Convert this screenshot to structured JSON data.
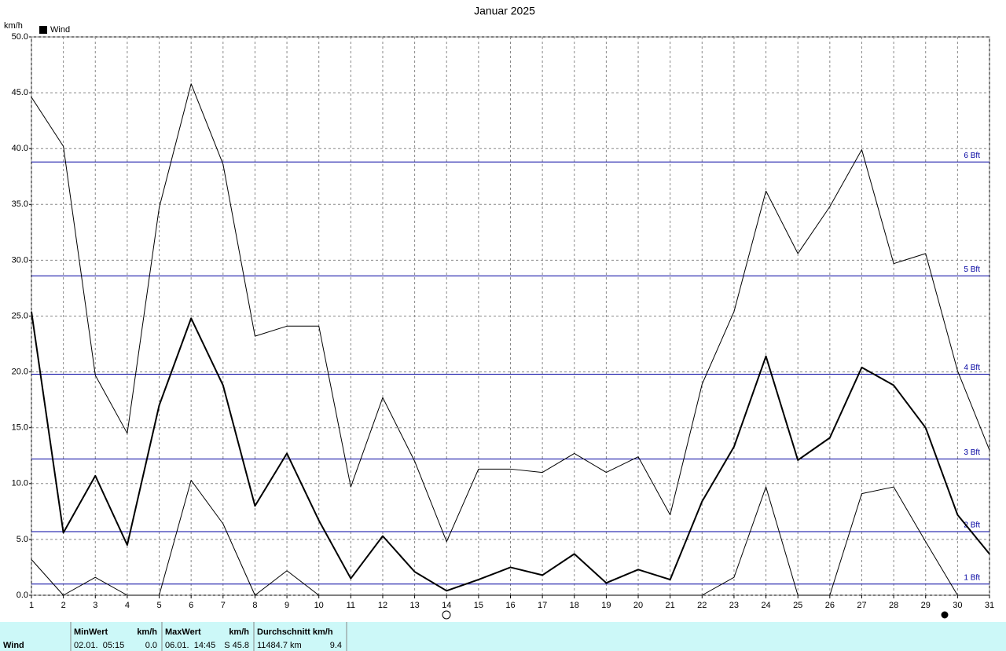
{
  "chart_data": {
    "type": "line",
    "title": "Januar 2025",
    "y_label": "km/h",
    "legend": "top-left",
    "grid": true,
    "x": [
      1,
      2,
      3,
      4,
      5,
      6,
      7,
      8,
      9,
      10,
      11,
      12,
      13,
      14,
      15,
      16,
      17,
      18,
      19,
      20,
      21,
      22,
      23,
      24,
      25,
      26,
      27,
      28,
      29,
      30,
      31
    ],
    "xlim": [
      1,
      31
    ],
    "xticks": [
      1,
      2,
      3,
      4,
      5,
      6,
      7,
      8,
      9,
      10,
      11,
      12,
      13,
      14,
      15,
      16,
      17,
      18,
      19,
      20,
      21,
      22,
      23,
      24,
      25,
      26,
      27,
      28,
      29,
      30,
      31
    ],
    "ylim": [
      0,
      50
    ],
    "yticks": [
      {
        "value": 0,
        "label": "0.0"
      },
      {
        "value": 5,
        "label": "5.0"
      },
      {
        "value": 10,
        "label": "10.0"
      },
      {
        "value": 15,
        "label": "15.0"
      },
      {
        "value": 20,
        "label": "20.0"
      },
      {
        "value": 25,
        "label": "25.0"
      },
      {
        "value": 30,
        "label": "30.0"
      },
      {
        "value": 35,
        "label": "35.0"
      },
      {
        "value": 40,
        "label": "40.0"
      },
      {
        "value": 45,
        "label": "45.0"
      },
      {
        "value": 50,
        "label": "50.0"
      }
    ],
    "series": [
      {
        "name": "Wind",
        "color": "#000000",
        "width": 2,
        "values": [
          25.4,
          5.6,
          10.7,
          4.5,
          17.0,
          24.8,
          18.8,
          8.0,
          12.7,
          6.7,
          1.5,
          5.3,
          2.1,
          0.4,
          1.4,
          2.5,
          1.8,
          3.7,
          1.1,
          2.3,
          1.4,
          8.4,
          13.3,
          21.4,
          12.1,
          14.1,
          20.4,
          18.8,
          15.0,
          7.2,
          3.7
        ]
      },
      {
        "color": "#000000",
        "width": 1,
        "values": [
          44.6,
          40.2,
          19.7,
          14.5,
          34.7,
          45.8,
          38.6,
          23.2,
          24.1,
          24.1,
          9.7,
          17.7,
          12.0,
          4.8,
          11.3,
          11.3,
          11.0,
          12.7,
          11.0,
          12.4,
          7.2,
          18.9,
          25.4,
          36.2,
          30.6,
          34.8,
          39.9,
          29.7,
          30.6,
          20.1,
          13.0
        ]
      },
      {
        "color": "#000000",
        "width": 1,
        "values": [
          3.2,
          0,
          1.6,
          0,
          0,
          10.3,
          6.4,
          0,
          2.2,
          0,
          0,
          0,
          0,
          0,
          0,
          0,
          0,
          0,
          0,
          0,
          0,
          0,
          1.6,
          9.7,
          0,
          0,
          9.1,
          9.7,
          4.8,
          0,
          0
        ]
      }
    ],
    "reference_lines": {
      "color": "#0000a0",
      "lines": [
        {
          "value": 1.0,
          "label": "1 Bft"
        },
        {
          "value": 5.7,
          "label": "2 Bft"
        },
        {
          "value": 12.2,
          "label": "3 Bft"
        },
        {
          "value": 19.8,
          "label": "4 Bft"
        },
        {
          "value": 28.6,
          "label": "5 Bft"
        },
        {
          "value": 38.8,
          "label": "6 Bft"
        }
      ]
    }
  },
  "summary": {
    "row_label": "Wind",
    "columns": [
      {
        "header": "MinWert",
        "unit": "km/h",
        "left": "02.01.  05:15",
        "right": "0.0"
      },
      {
        "header": "MaxWert",
        "unit": "km/h",
        "left": "06.01.  14:45",
        "right": "S 45.8"
      },
      {
        "header": "Durchschnitt km/h",
        "left": "11484.7 km",
        "right": "9.4"
      }
    ]
  }
}
